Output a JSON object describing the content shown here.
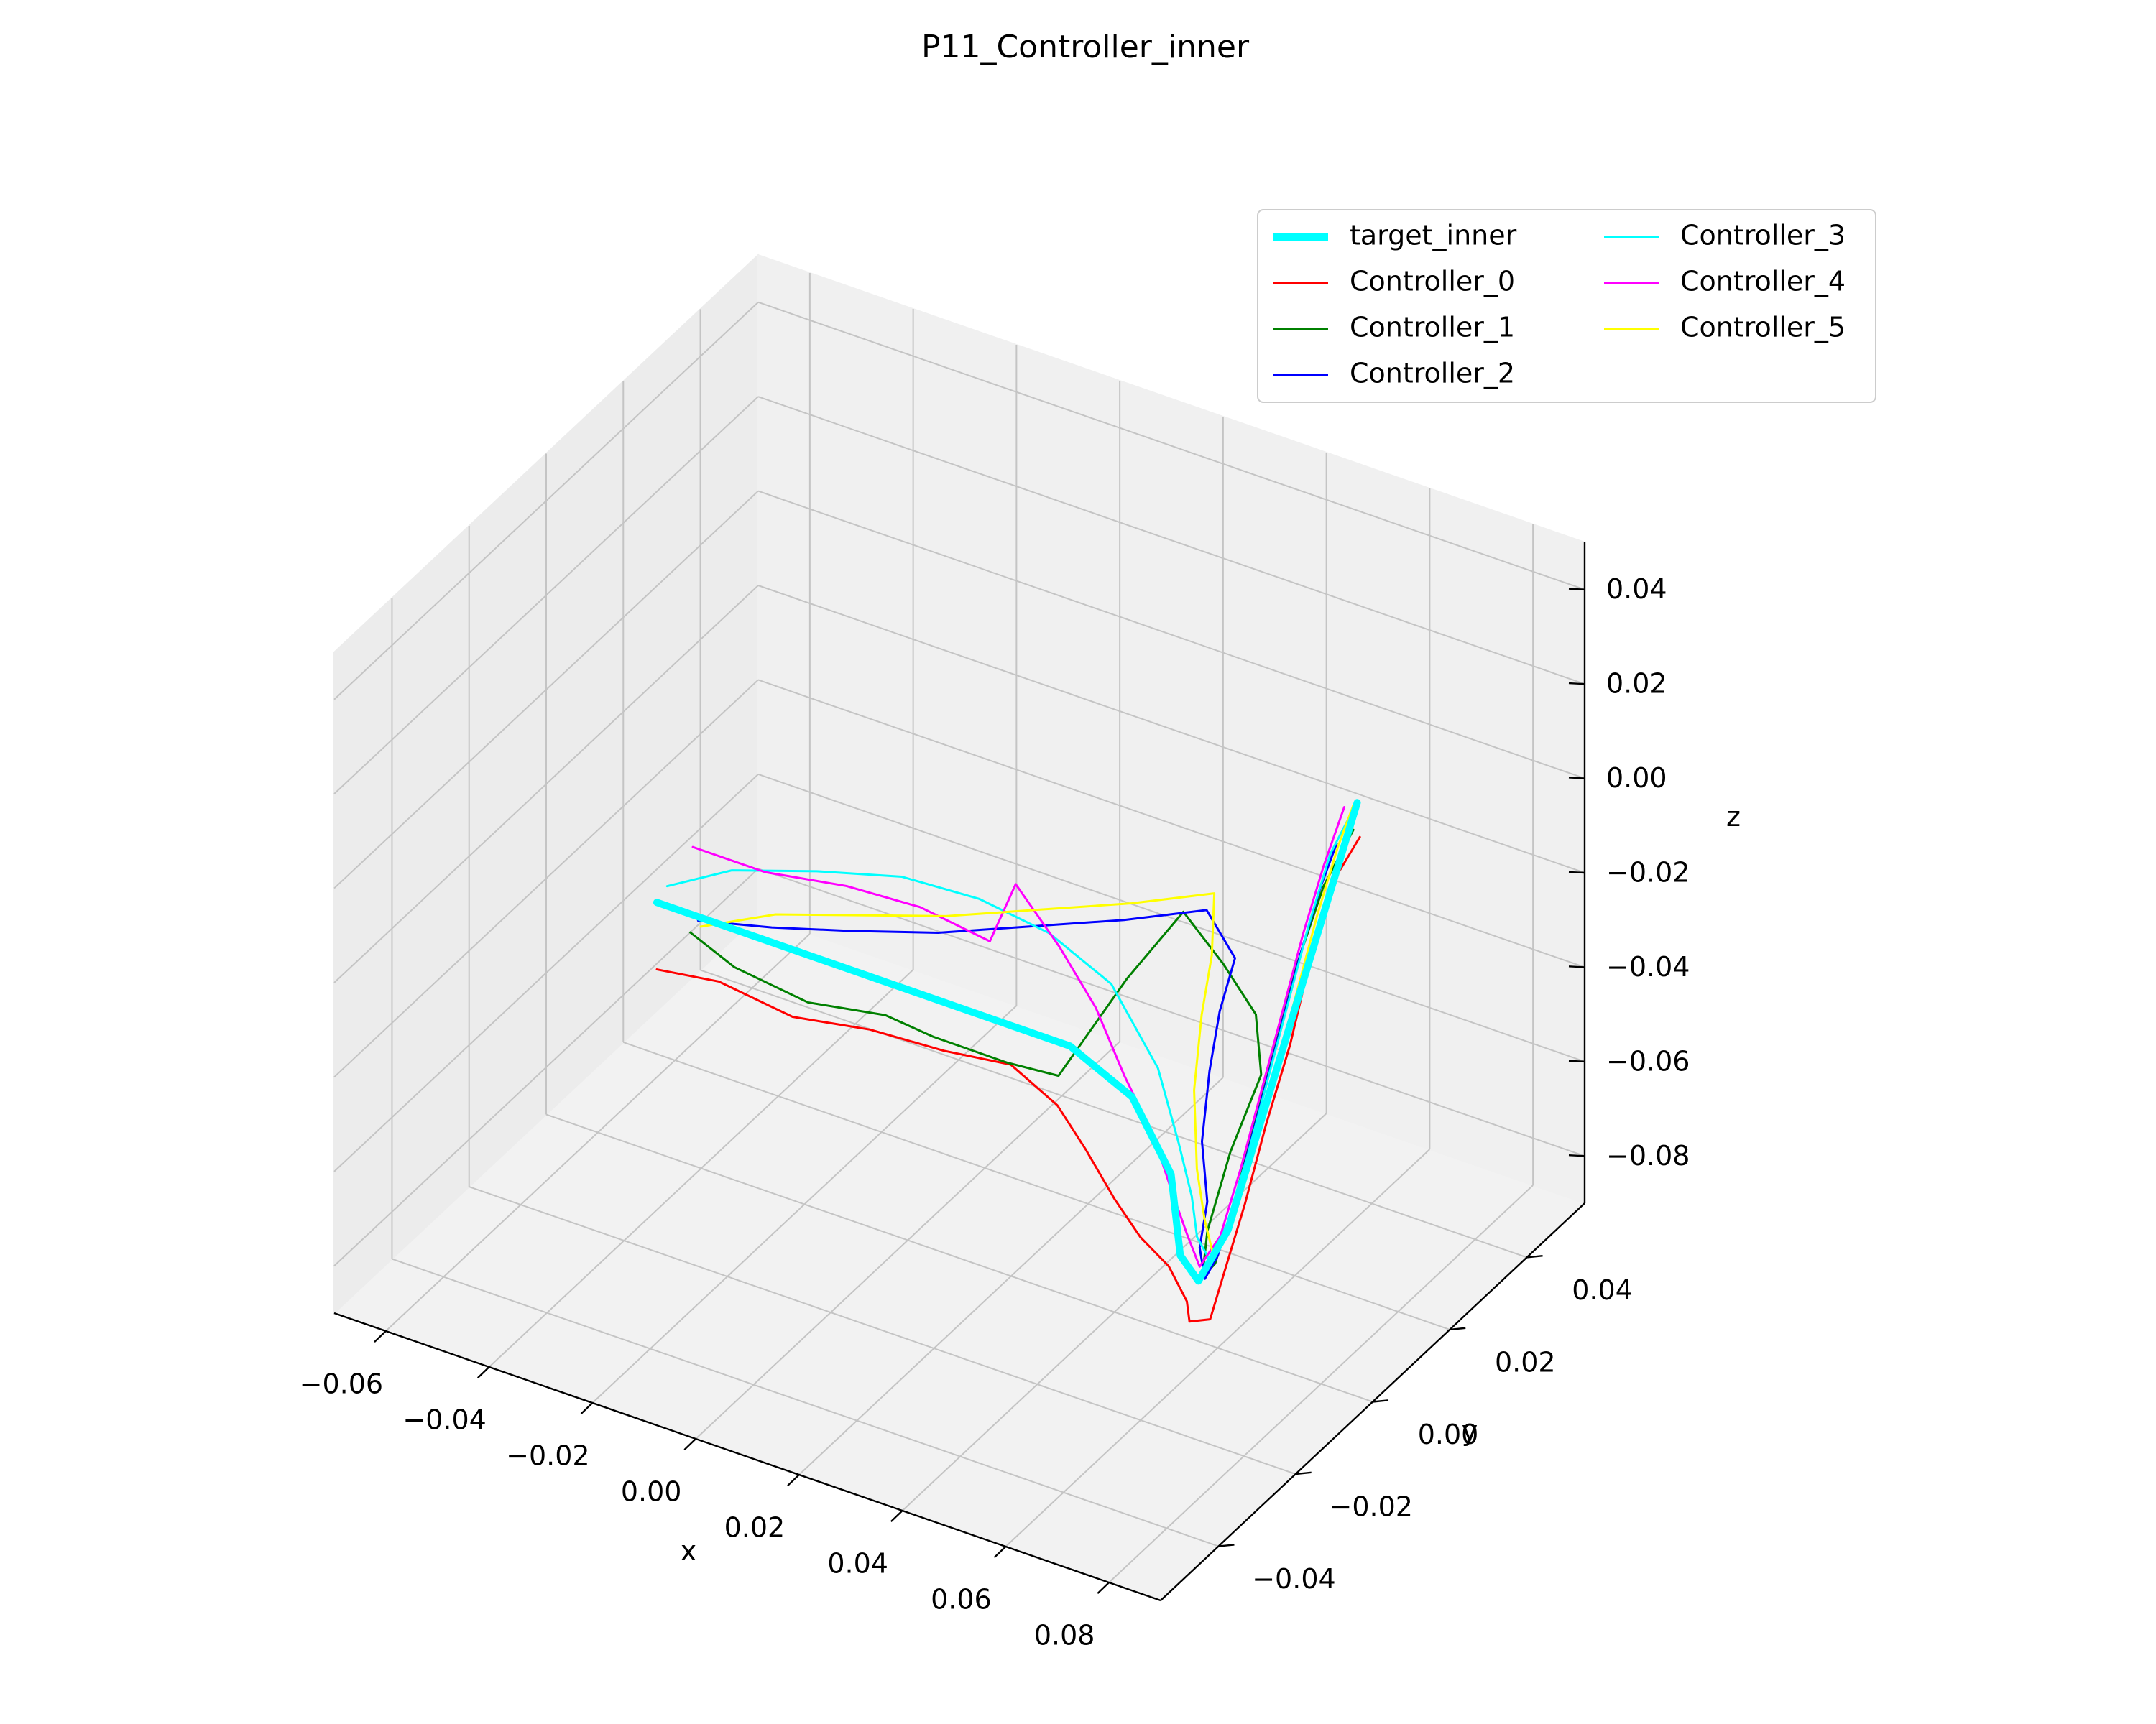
{
  "chart_data": {
    "type": "line",
    "projection": "3d",
    "title": "P11_Controller_inner",
    "xlabel": "x",
    "ylabel": "y",
    "zlabel": "z",
    "xlim": [
      -0.07,
      0.09
    ],
    "ylim": [
      -0.055,
      0.055
    ],
    "zlim": [
      -0.09,
      0.05
    ],
    "xticks": [
      "−0.06",
      "−0.04",
      "−0.02",
      "0.00",
      "0.02",
      "0.04",
      "0.06",
      "0.08"
    ],
    "yticks": [
      "−0.04",
      "−0.02",
      "0.00",
      "0.02",
      "0.04"
    ],
    "zticks": [
      "−0.08",
      "−0.06",
      "−0.04",
      "−0.02",
      "0.00",
      "0.02",
      "0.04"
    ],
    "grid": true,
    "legend_position": "top-right",
    "legend_columns": 2,
    "series": [
      {
        "name": "target_inner",
        "color": "#00ffff",
        "linewidth": 5,
        "points": [
          [
            -0.065,
            0.022,
            -0.06
          ],
          [
            -0.045,
            0.022,
            -0.06
          ],
          [
            -0.025,
            0.022,
            -0.06
          ],
          [
            -0.005,
            0.022,
            -0.06
          ],
          [
            0.015,
            0.022,
            -0.06
          ],
          [
            0.03,
            0.018,
            -0.062
          ],
          [
            0.045,
            0.008,
            -0.065
          ],
          [
            0.055,
            -0.003,
            -0.07
          ],
          [
            0.06,
            -0.005,
            -0.072
          ],
          [
            0.065,
            -0.004,
            -0.06
          ],
          [
            0.07,
            -0.004,
            -0.04
          ],
          [
            0.075,
            -0.004,
            -0.02
          ],
          [
            0.08,
            -0.004,
            0.0
          ],
          [
            0.085,
            -0.004,
            0.02
          ],
          [
            0.09,
            -0.004,
            0.04
          ]
        ]
      },
      {
        "name": "Controller_0",
        "color": "#ff0000",
        "linewidth": 1.5,
        "points": [
          [
            -0.062,
            0.018,
            -0.07
          ],
          [
            -0.05,
            0.018,
            -0.068
          ],
          [
            -0.035,
            0.017,
            -0.069
          ],
          [
            -0.02,
            0.017,
            -0.066
          ],
          [
            -0.005,
            0.016,
            -0.064
          ],
          [
            0.008,
            0.016,
            -0.062
          ],
          [
            0.02,
            0.012,
            -0.063
          ],
          [
            0.03,
            0.006,
            -0.064
          ],
          [
            0.04,
            0.0,
            -0.066
          ],
          [
            0.048,
            -0.004,
            -0.068
          ],
          [
            0.055,
            -0.006,
            -0.07
          ],
          [
            0.06,
            -0.008,
            -0.074
          ],
          [
            0.062,
            -0.01,
            -0.076
          ],
          [
            0.066,
            -0.01,
            -0.074
          ],
          [
            0.068,
            -0.009,
            -0.064
          ],
          [
            0.072,
            -0.009,
            -0.048
          ],
          [
            0.076,
            -0.009,
            -0.03
          ],
          [
            0.08,
            -0.008,
            -0.012
          ],
          [
            0.084,
            -0.008,
            0.008
          ],
          [
            0.088,
            -0.008,
            0.025
          ],
          [
            0.092,
            -0.006,
            0.035
          ]
        ]
      },
      {
        "name": "Controller_1",
        "color": "#008000",
        "linewidth": 1.5,
        "points": [
          [
            -0.06,
            0.024,
            -0.066
          ],
          [
            -0.05,
            0.022,
            -0.068
          ],
          [
            -0.035,
            0.021,
            -0.069
          ],
          [
            -0.02,
            0.021,
            -0.066
          ],
          [
            -0.01,
            0.02,
            -0.066
          ],
          [
            0.005,
            0.019,
            -0.065
          ],
          [
            0.015,
            0.019,
            -0.064
          ],
          [
            0.02,
            0.03,
            -0.05
          ],
          [
            0.025,
            0.038,
            -0.04
          ],
          [
            0.035,
            0.035,
            -0.045
          ],
          [
            0.045,
            0.03,
            -0.048
          ],
          [
            0.052,
            0.022,
            -0.052
          ],
          [
            0.055,
            0.01,
            -0.058
          ],
          [
            0.058,
            0.0,
            -0.066
          ],
          [
            0.06,
            -0.004,
            -0.072
          ],
          [
            0.064,
            -0.006,
            -0.066
          ],
          [
            0.068,
            -0.006,
            -0.05
          ],
          [
            0.072,
            -0.006,
            -0.032
          ],
          [
            0.076,
            -0.006,
            -0.014
          ],
          [
            0.08,
            -0.006,
            0.004
          ],
          [
            0.085,
            -0.006,
            0.022
          ],
          [
            0.09,
            -0.005,
            0.035
          ]
        ]
      },
      {
        "name": "Controller_2",
        "color": "#0000ff",
        "linewidth": 1.5,
        "points": [
          [
            -0.06,
            0.026,
            -0.065
          ],
          [
            -0.045,
            0.025,
            -0.06
          ],
          [
            -0.03,
            0.025,
            -0.055
          ],
          [
            -0.015,
            0.028,
            -0.052
          ],
          [
            0.0,
            0.032,
            -0.048
          ],
          [
            0.015,
            0.036,
            -0.044
          ],
          [
            0.028,
            0.04,
            -0.04
          ],
          [
            0.035,
            0.038,
            -0.046
          ],
          [
            0.038,
            0.03,
            -0.05
          ],
          [
            0.042,
            0.022,
            -0.055
          ],
          [
            0.048,
            0.012,
            -0.06
          ],
          [
            0.055,
            0.004,
            -0.064
          ],
          [
            0.058,
            -0.002,
            -0.068
          ],
          [
            0.062,
            -0.006,
            -0.07
          ],
          [
            0.066,
            -0.008,
            -0.062
          ],
          [
            0.07,
            -0.008,
            -0.046
          ],
          [
            0.074,
            -0.008,
            -0.028
          ],
          [
            0.078,
            -0.008,
            -0.01
          ],
          [
            0.082,
            -0.008,
            0.008
          ],
          [
            0.086,
            -0.008,
            0.024
          ],
          [
            0.089,
            -0.008,
            0.034
          ]
        ]
      },
      {
        "name": "Controller_3",
        "color": "#00ffff",
        "linewidth": 1.5,
        "points": [
          [
            -0.066,
            0.026,
            -0.06
          ],
          [
            -0.055,
            0.028,
            -0.054
          ],
          [
            -0.04,
            0.03,
            -0.05
          ],
          [
            -0.025,
            0.032,
            -0.047
          ],
          [
            -0.01,
            0.032,
            -0.046
          ],
          [
            0.005,
            0.03,
            -0.046
          ],
          [
            0.02,
            0.026,
            -0.048
          ],
          [
            0.035,
            0.018,
            -0.054
          ],
          [
            0.045,
            0.01,
            -0.06
          ],
          [
            0.052,
            0.004,
            -0.064
          ],
          [
            0.056,
            0.0,
            -0.068
          ],
          [
            0.06,
            -0.002,
            -0.07
          ],
          [
            0.064,
            -0.003,
            -0.06
          ],
          [
            0.068,
            -0.003,
            -0.044
          ],
          [
            0.072,
            -0.003,
            -0.026
          ],
          [
            0.076,
            -0.003,
            -0.008
          ],
          [
            0.08,
            -0.003,
            0.01
          ],
          [
            0.084,
            -0.003,
            0.026
          ],
          [
            0.088,
            -0.003,
            0.036
          ]
        ]
      },
      {
        "name": "Controller_4",
        "color": "#ff00ff",
        "linewidth": 1.5,
        "points": [
          [
            -0.064,
            0.03,
            -0.054
          ],
          [
            -0.05,
            0.03,
            -0.054
          ],
          [
            -0.035,
            0.031,
            -0.052
          ],
          [
            -0.02,
            0.03,
            -0.05
          ],
          [
            -0.005,
            0.028,
            -0.05
          ],
          [
            0.0,
            0.028,
            -0.036
          ],
          [
            0.01,
            0.026,
            -0.044
          ],
          [
            0.02,
            0.022,
            -0.05
          ],
          [
            0.03,
            0.016,
            -0.056
          ],
          [
            0.04,
            0.01,
            -0.06
          ],
          [
            0.048,
            0.004,
            -0.064
          ],
          [
            0.054,
            0.0,
            -0.068
          ],
          [
            0.058,
            -0.002,
            -0.072
          ],
          [
            0.062,
            -0.002,
            -0.064
          ],
          [
            0.066,
            -0.002,
            -0.048
          ],
          [
            0.07,
            -0.002,
            -0.03
          ],
          [
            0.074,
            -0.002,
            -0.012
          ],
          [
            0.078,
            -0.002,
            0.006
          ],
          [
            0.082,
            -0.002,
            0.022
          ],
          [
            0.086,
            -0.002,
            0.036
          ]
        ]
      },
      {
        "name": "Controller_5",
        "color": "#ffff00",
        "linewidth": 1.5,
        "points": [
          [
            -0.058,
            0.024,
            -0.064
          ],
          [
            -0.045,
            0.026,
            -0.058
          ],
          [
            -0.03,
            0.028,
            -0.054
          ],
          [
            -0.015,
            0.03,
            -0.05
          ],
          [
            0.0,
            0.034,
            -0.046
          ],
          [
            0.015,
            0.038,
            -0.042
          ],
          [
            0.028,
            0.042,
            -0.038
          ],
          [
            0.032,
            0.036,
            -0.045
          ],
          [
            0.036,
            0.028,
            -0.05
          ],
          [
            0.042,
            0.018,
            -0.056
          ],
          [
            0.05,
            0.008,
            -0.062
          ],
          [
            0.056,
            0.002,
            -0.066
          ],
          [
            0.06,
            -0.001,
            -0.07
          ],
          [
            0.064,
            -0.001,
            -0.06
          ],
          [
            0.068,
            -0.001,
            -0.044
          ],
          [
            0.072,
            -0.001,
            -0.026
          ],
          [
            0.076,
            -0.001,
            -0.008
          ],
          [
            0.08,
            -0.001,
            0.01
          ],
          [
            0.084,
            -0.001,
            0.026
          ],
          [
            0.087,
            -0.001,
            0.036
          ]
        ]
      }
    ]
  }
}
